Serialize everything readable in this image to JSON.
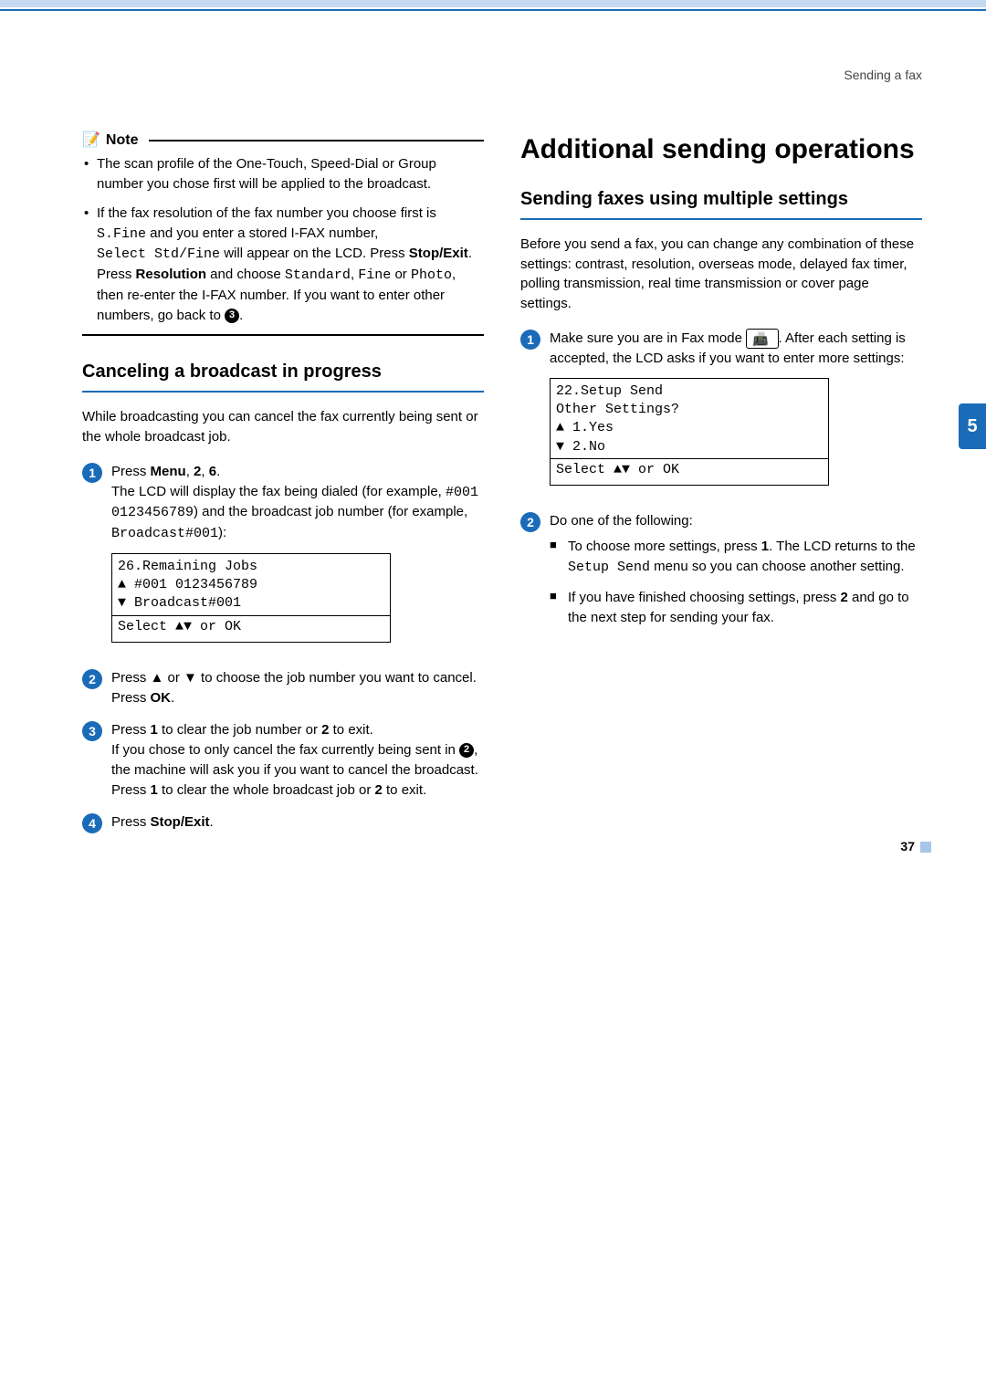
{
  "header": {
    "breadcrumb": "Sending a fax"
  },
  "tab": {
    "label": "5"
  },
  "left": {
    "note_label": "Note",
    "note1": "The scan profile of the One-Touch, Speed-Dial or Group number you chose first will be applied to the broadcast.",
    "note2a": "If the fax resolution of the fax number you choose first is ",
    "note2_sfine": "S.Fine",
    "note2b": " and you enter a stored I-FAX number, ",
    "note2_select": "Select Std/Fine",
    "note2c": " will appear on the LCD. Press ",
    "note2_stop": "Stop/Exit",
    "note2d": ". Press ",
    "note2_res": "Resolution",
    "note2e": " and choose ",
    "note2_std": "Standard",
    "note2_fine": "Fine",
    "note2_or": " or ",
    "note2_photo": "Photo",
    "note2f": ", then re-enter the I-FAX number. If you want to enter other numbers, go back to ",
    "note2_ref": "3",
    "cancel_h": "Canceling a broadcast in progress",
    "cancel_intro": "While broadcasting you can cancel the fax currently being sent or the whole broadcast job.",
    "s1a": "Press ",
    "s1_menu": "Menu",
    "s1_comma1": ", ",
    "s1_2": "2",
    "s1_comma2": ", ",
    "s1_6": "6",
    "s1_period": ".",
    "s1b": "The LCD will display the fax being dialed (for example, ",
    "s1_ex1": "#001 0123456789",
    "s1c": ") and the broadcast job number (for example, ",
    "s1_ex2": "Broadcast#001",
    "s1d": "):",
    "lcd1_l1": "26.Remaining Jobs",
    "lcd1_l2": "▲ #001 0123456789",
    "lcd1_l3": "▼ Broadcast#001",
    "lcd1_l4": " ",
    "lcd1_l5": "Select ▲▼ or OK",
    "s2a": "Press ▲ or ▼ to choose the job number you want to cancel.",
    "s2b": "Press ",
    "s2_ok": "OK",
    "s3a": "Press ",
    "s3_1": "1",
    "s3b": " to clear the job number or ",
    "s3_2": "2",
    "s3c": " to exit.",
    "s3d": "If you chose to only cancel the fax currently being sent in ",
    "s3_ref": "2",
    "s3e": ", the machine will ask you if you want to cancel the broadcast. Press ",
    "s3_1b": "1",
    "s3f": " to clear the whole broadcast job or ",
    "s3_2b": "2",
    "s3g": " to exit.",
    "s4a": "Press ",
    "s4_stop": "Stop/Exit",
    "s4b": "."
  },
  "right": {
    "h1": "Additional sending operations",
    "h2": "Sending faxes using multiple settings",
    "intro": "Before you send a fax, you can change any combination of these settings: contrast, resolution, overseas mode, delayed fax timer, polling transmission, real time transmission or cover page settings.",
    "s1a": "Make sure you are in Fax mode ",
    "s1_fax": "📠",
    "s1b": ". After each setting is accepted, the LCD asks if you want to enter more settings:",
    "lcd_l1": "22.Setup Send",
    "lcd_l2": "  Other Settings?",
    "lcd_l3": "▲    1.Yes",
    "lcd_l4": "▼    2.No",
    "lcd_l5": "Select ▲▼ or OK",
    "s2a": "Do one of the following:",
    "bl1a": "To choose more settings, press ",
    "bl1_1": "1",
    "bl1b": ". The LCD returns to the ",
    "bl1_setup": "Setup Send",
    "bl1c": " menu so you can choose another setting.",
    "bl2a": "If you have finished choosing settings, press ",
    "bl2_2": "2",
    "bl2b": " and go to the next step for sending your fax."
  },
  "footer": {
    "pageno": "37"
  }
}
